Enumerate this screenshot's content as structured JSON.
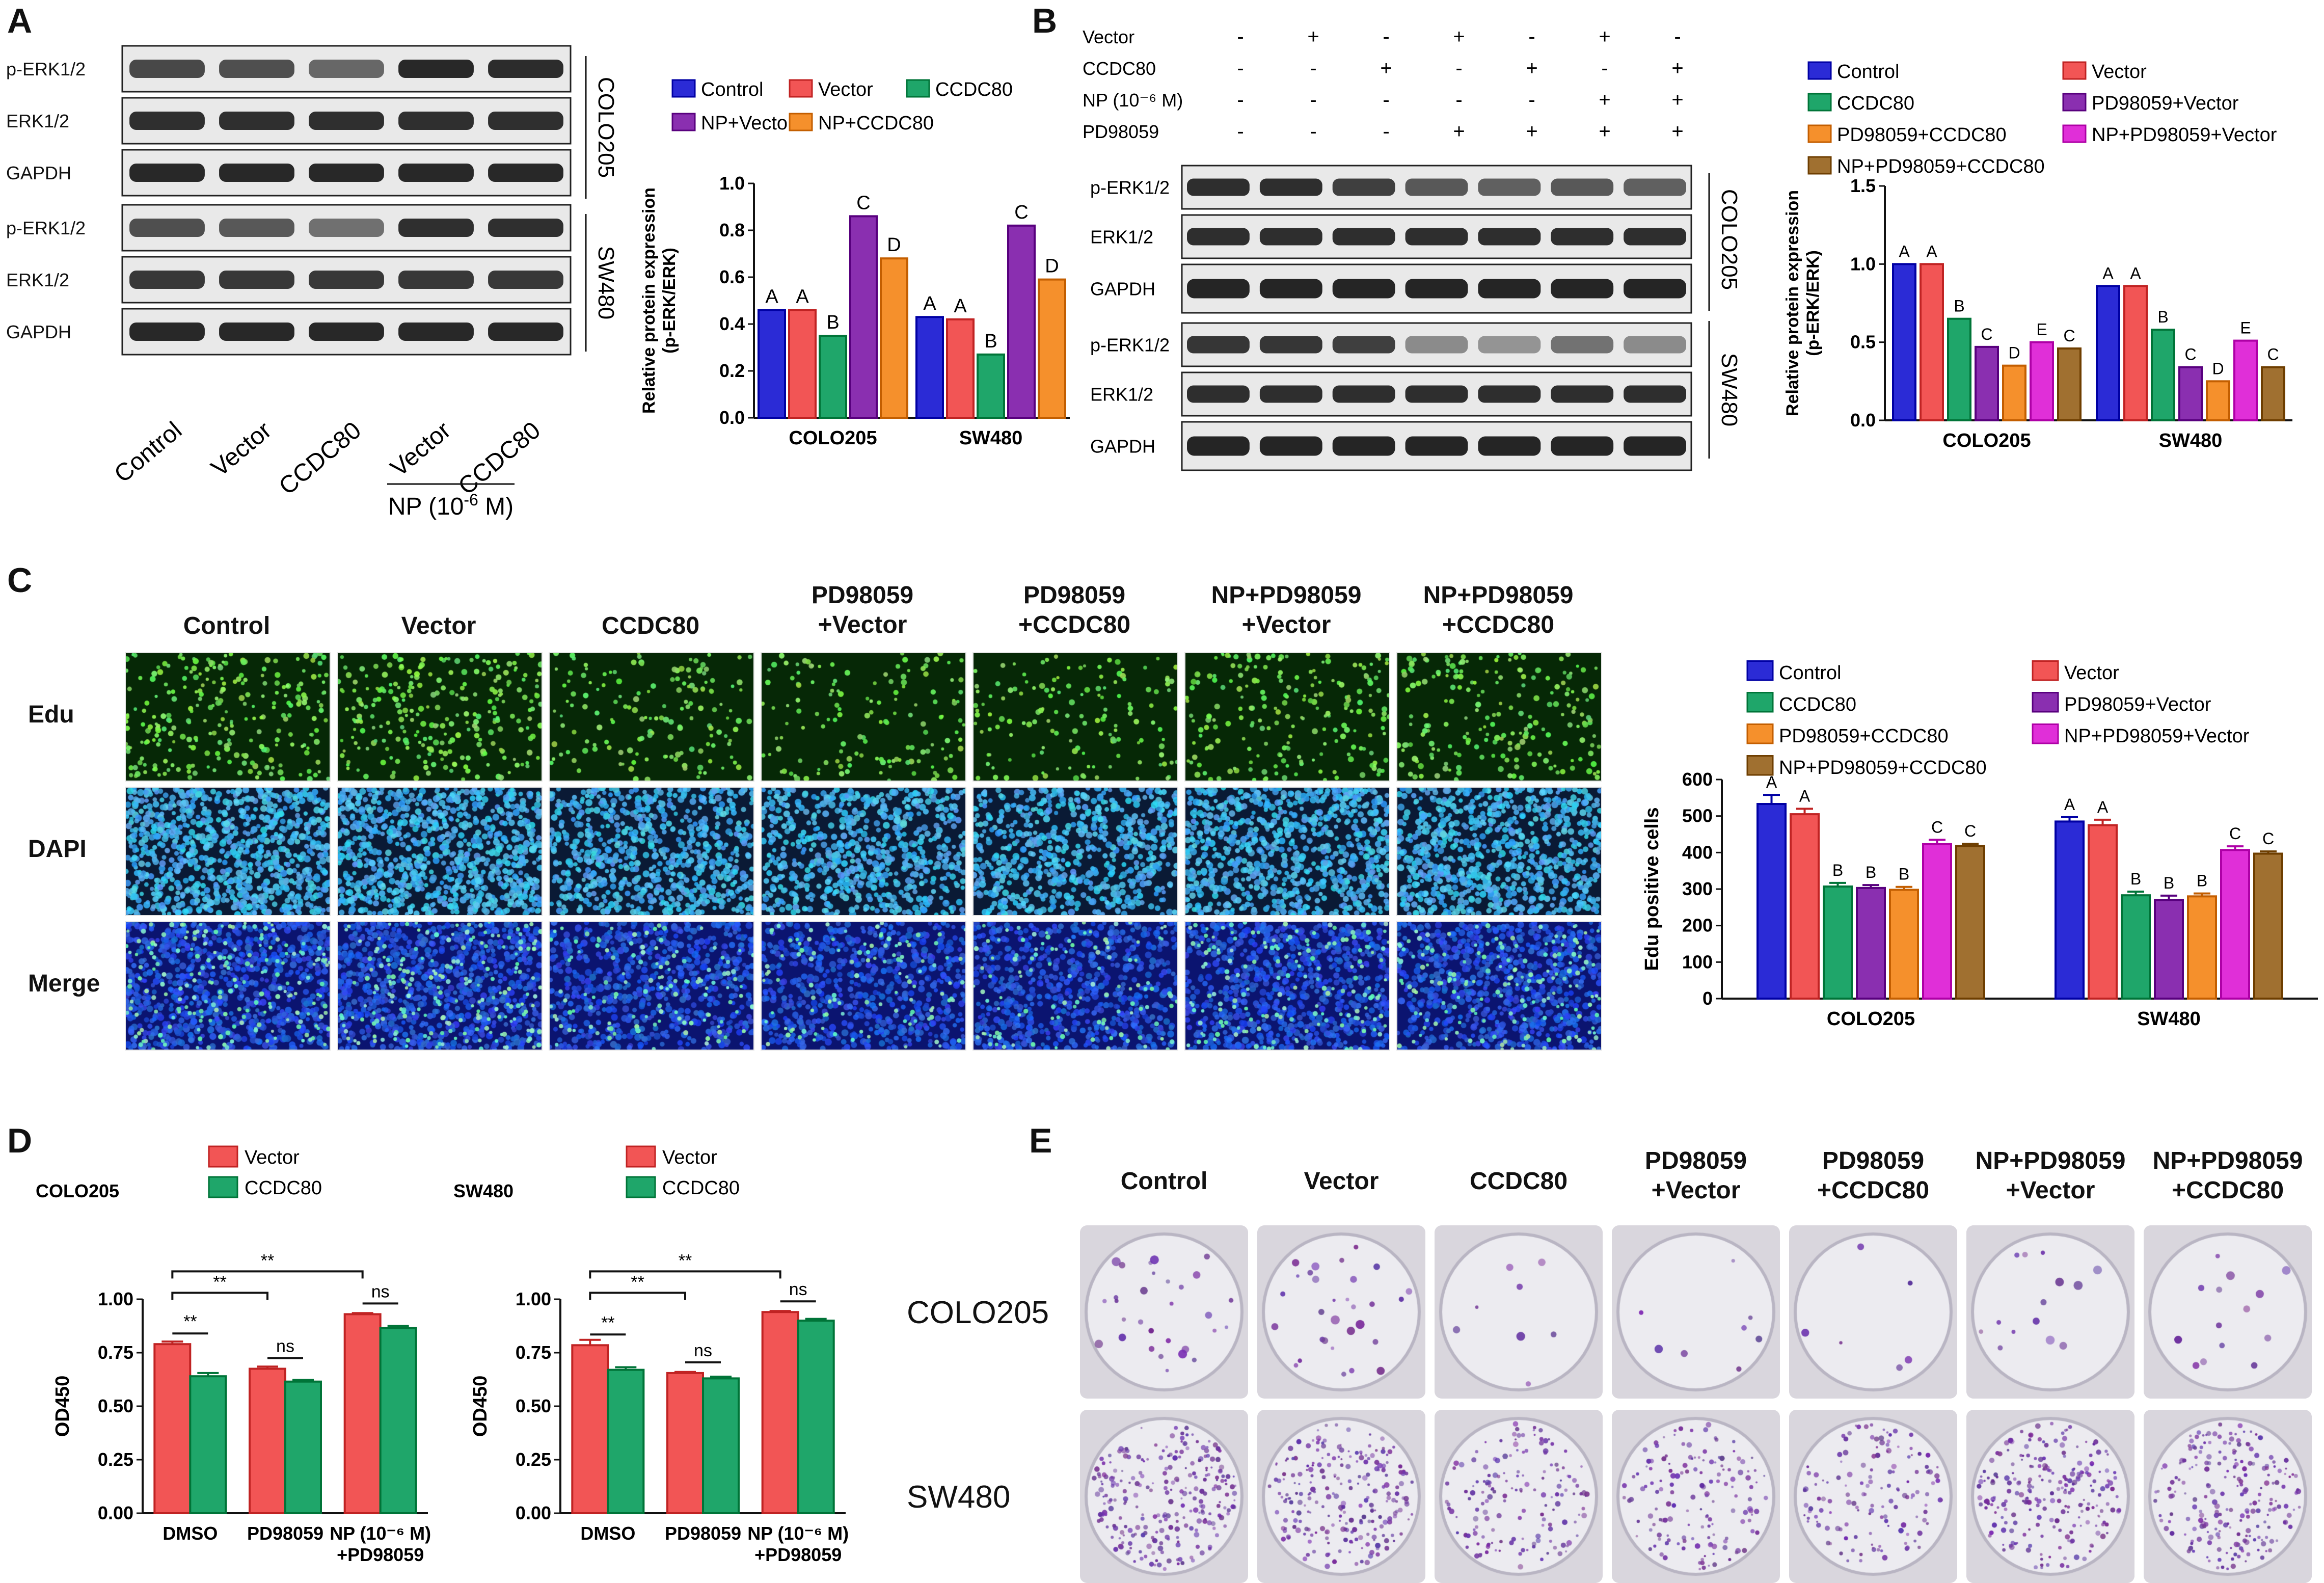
{
  "panels": {
    "A": {
      "letter": "A",
      "blot_labels": [
        "p-ERK1/2",
        "ERK1/2",
        "GAPDH",
        "p-ERK1/2",
        "ERK1/2",
        "GAPDH"
      ],
      "cell_lines": [
        "COLO205",
        "SW480"
      ],
      "lanes": [
        "Control",
        "Vector",
        "CCDC80",
        "Vector",
        "CCDC80"
      ],
      "np_label": "NP (10",
      "np_exp": "-6",
      "np_suffix": " M)"
    },
    "B": {
      "letter": "B",
      "row_labels": [
        "Vector",
        "CCDC80",
        "NP (10⁻⁶ M)",
        "PD98059"
      ],
      "signs": [
        [
          "-",
          "+",
          "-",
          "+",
          "-",
          "+",
          "-"
        ],
        [
          "-",
          "-",
          "+",
          "-",
          "+",
          "-",
          "+"
        ],
        [
          "-",
          "-",
          "-",
          "-",
          "-",
          "+",
          "+"
        ],
        [
          "-",
          "-",
          "-",
          "+",
          "+",
          "+",
          "+"
        ]
      ],
      "blot_labels": [
        "p-ERK1/2",
        "ERK1/2",
        "GAPDH",
        "p-ERK1/2",
        "ERK1/2",
        "GAPDH"
      ],
      "cell_lines": [
        "COLO205",
        "SW480"
      ]
    },
    "C": {
      "letter": "C",
      "conditions": [
        "Control",
        "Vector",
        "CCDC80",
        "PD98059\n+Vector",
        "PD98059\n+CCDC80",
        "NP+PD98059\n+Vector",
        "NP+PD98059\n+CCDC80"
      ],
      "rows": [
        "Edu",
        "DAPI",
        "Merge"
      ]
    },
    "D": {
      "letter": "D"
    },
    "E": {
      "letter": "E",
      "conditions": [
        "Control",
        "Vector",
        "CCDC80",
        "PD98059\n+Vector",
        "PD98059\n+CCDC80",
        "NP+PD98059\n+Vector",
        "NP+PD98059\n+CCDC80"
      ],
      "rows": [
        "COLO205",
        "SW480"
      ]
    }
  },
  "colors": {
    "Control": "#2b2bd6",
    "Vector": "#f25555",
    "CCDC80": "#1fa66a",
    "NP+Vector": "#8a2fb0",
    "NP+CCDC80": "#f5902c",
    "PD98059+Vector": "#8a2fb0",
    "PD98059+CCDC80": "#f5902c",
    "NP+PD98059+Vector": "#e02fd8",
    "NP+PD98059+CCDC80": "#a07030"
  },
  "chart_data": [
    {
      "id": "A",
      "type": "bar",
      "categories": [
        "COLO205",
        "SW480"
      ],
      "ylabel": "Relative protein expression\n(p-ERK/ERK)",
      "ylim": [
        0,
        1.0
      ],
      "yticks": [
        "0.0",
        "0.2",
        "0.4",
        "0.6",
        "0.8",
        "1.0"
      ],
      "legend_placement": "top",
      "series": [
        {
          "name": "Control",
          "values": [
            0.46,
            0.43
          ],
          "letters": [
            "A",
            "A"
          ]
        },
        {
          "name": "Vector",
          "values": [
            0.46,
            0.42
          ],
          "letters": [
            "A",
            "A"
          ]
        },
        {
          "name": "CCDC80",
          "values": [
            0.35,
            0.27
          ],
          "letters": [
            "B",
            "B"
          ]
        },
        {
          "name": "NP+Vector",
          "values": [
            0.86,
            0.82
          ],
          "letters": [
            "C",
            "C"
          ]
        },
        {
          "name": "NP+CCDC80",
          "values": [
            0.68,
            0.59
          ],
          "letters": [
            "D",
            "D"
          ]
        }
      ]
    },
    {
      "id": "B",
      "type": "bar",
      "categories": [
        "COLO205",
        "SW480"
      ],
      "ylabel": "Relative protein expression\n(p-ERK/ERK)",
      "ylim": [
        0,
        1.5
      ],
      "yticks": [
        "0.0",
        "0.5",
        "1.0",
        "1.5"
      ],
      "legend_placement": "top",
      "series": [
        {
          "name": "Control",
          "values": [
            1.0,
            0.86
          ],
          "letters": [
            "A",
            "A"
          ]
        },
        {
          "name": "Vector",
          "values": [
            1.0,
            0.86
          ],
          "letters": [
            "A",
            "A"
          ]
        },
        {
          "name": "CCDC80",
          "values": [
            0.65,
            0.58
          ],
          "letters": [
            "B",
            "B"
          ]
        },
        {
          "name": "PD98059+Vector",
          "values": [
            0.47,
            0.34
          ],
          "letters": [
            "C",
            "C"
          ]
        },
        {
          "name": "PD98059+CCDC80",
          "values": [
            0.35,
            0.25
          ],
          "letters": [
            "D",
            "D"
          ]
        },
        {
          "name": "NP+PD98059+Vector",
          "values": [
            0.5,
            0.51
          ],
          "letters": [
            "E",
            "E"
          ]
        },
        {
          "name": "NP+PD98059+CCDC80",
          "values": [
            0.46,
            0.34
          ],
          "letters": [
            "C",
            "C"
          ]
        }
      ]
    },
    {
      "id": "C",
      "type": "bar",
      "categories": [
        "COLO205",
        "SW480"
      ],
      "ylabel": "Edu positive cells",
      "ylim": [
        0,
        600
      ],
      "yticks": [
        "0",
        "100",
        "200",
        "300",
        "400",
        "500",
        "600"
      ],
      "legend_placement": "top",
      "series": [
        {
          "name": "Control",
          "values": [
            533,
            485
          ],
          "err": [
            25,
            12
          ],
          "letters": [
            "A",
            "A"
          ]
        },
        {
          "name": "Vector",
          "values": [
            505,
            475
          ],
          "err": [
            15,
            15
          ],
          "letters": [
            "A",
            "A"
          ]
        },
        {
          "name": "CCDC80",
          "values": [
            307,
            283
          ],
          "err": [
            10,
            10
          ],
          "letters": [
            "B",
            "B"
          ]
        },
        {
          "name": "PD98059+Vector",
          "values": [
            303,
            270
          ],
          "err": [
            8,
            12
          ],
          "letters": [
            "B",
            "B"
          ]
        },
        {
          "name": "PD98059+CCDC80",
          "values": [
            298,
            280
          ],
          "err": [
            8,
            8
          ],
          "letters": [
            "B",
            "B"
          ]
        },
        {
          "name": "NP+PD98059+Vector",
          "values": [
            423,
            407
          ],
          "err": [
            12,
            10
          ],
          "letters": [
            "C",
            "C"
          ]
        },
        {
          "name": "NP+PD98059+CCDC80",
          "values": [
            418,
            397
          ],
          "err": [
            6,
            6
          ],
          "letters": [
            "C",
            "C"
          ]
        }
      ]
    },
    {
      "id": "D1",
      "type": "bar",
      "title": "COLO205",
      "categories": [
        "DMSO",
        "PD98059",
        "NP (10⁻⁶ M)\n+PD98059"
      ],
      "ylabel": "OD450",
      "ylim": [
        0,
        1.0
      ],
      "yticks": [
        "0.00",
        "0.25",
        "0.50",
        "0.75",
        "1.00"
      ],
      "legend_placement": "top",
      "series": [
        {
          "name": "Vector",
          "values": [
            0.79,
            0.675,
            0.93
          ],
          "err": [
            0.012,
            0.01,
            0.005
          ]
        },
        {
          "name": "CCDC80",
          "values": [
            0.64,
            0.615,
            0.865
          ],
          "err": [
            0.015,
            0.008,
            0.01
          ]
        }
      ],
      "annotations": [
        "**",
        "**",
        "**",
        "ns",
        "ns"
      ]
    },
    {
      "id": "D2",
      "type": "bar",
      "title": "SW480",
      "categories": [
        "DMSO",
        "PD98059",
        "NP (10⁻⁶ M)\n+PD98059"
      ],
      "ylabel": "OD450",
      "ylim": [
        0,
        1.0
      ],
      "yticks": [
        "0.00",
        "0.25",
        "0.50",
        "0.75",
        "1.00"
      ],
      "legend_placement": "top",
      "series": [
        {
          "name": "Vector",
          "values": [
            0.785,
            0.655,
            0.94
          ],
          "err": [
            0.025,
            0.005,
            0.005
          ]
        },
        {
          "name": "CCDC80",
          "values": [
            0.67,
            0.63,
            0.9
          ],
          "err": [
            0.012,
            0.008,
            0.008
          ]
        }
      ],
      "annotations": [
        "**",
        "**",
        "**",
        "ns",
        "ns"
      ]
    }
  ]
}
